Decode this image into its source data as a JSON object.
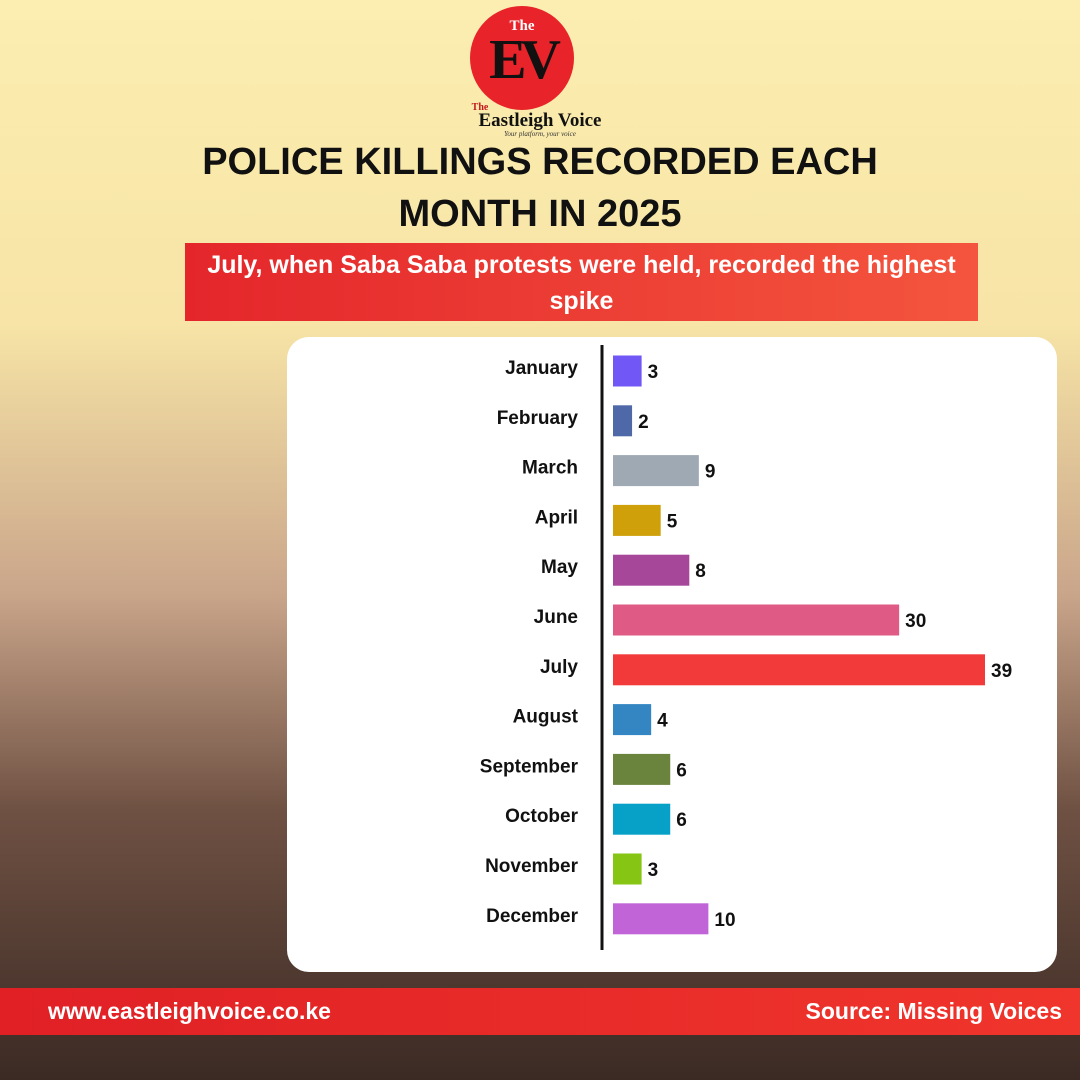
{
  "branding": {
    "logo_top": "The",
    "logo_letters": "EV",
    "name_prefix": "The",
    "name": "Eastleigh Voice",
    "tagline": "Your platform, your voice"
  },
  "chart_data": {
    "type": "bar",
    "orientation": "horizontal",
    "title": "POLICE KILLINGS RECORDED EACH MONTH IN 2025",
    "subtitle": "July, when Saba Saba protests were held, recorded the highest spike",
    "categories": [
      "January",
      "February",
      "March",
      "April",
      "May",
      "June",
      "July",
      "August",
      "September",
      "October",
      "November",
      "December"
    ],
    "values": [
      3,
      2,
      9,
      5,
      8,
      30,
      39,
      4,
      6,
      6,
      3,
      10
    ],
    "colors": [
      "#7157f5",
      "#4e68a8",
      "#9ea9b3",
      "#cfa00a",
      "#a6479a",
      "#e05a86",
      "#f33a3a",
      "#3386c2",
      "#6b843d",
      "#07a0c6",
      "#86c513",
      "#c064d8"
    ]
  },
  "footer": {
    "url": "www.eastleighvoice.co.ke",
    "source": "Source: Missing Voices"
  }
}
